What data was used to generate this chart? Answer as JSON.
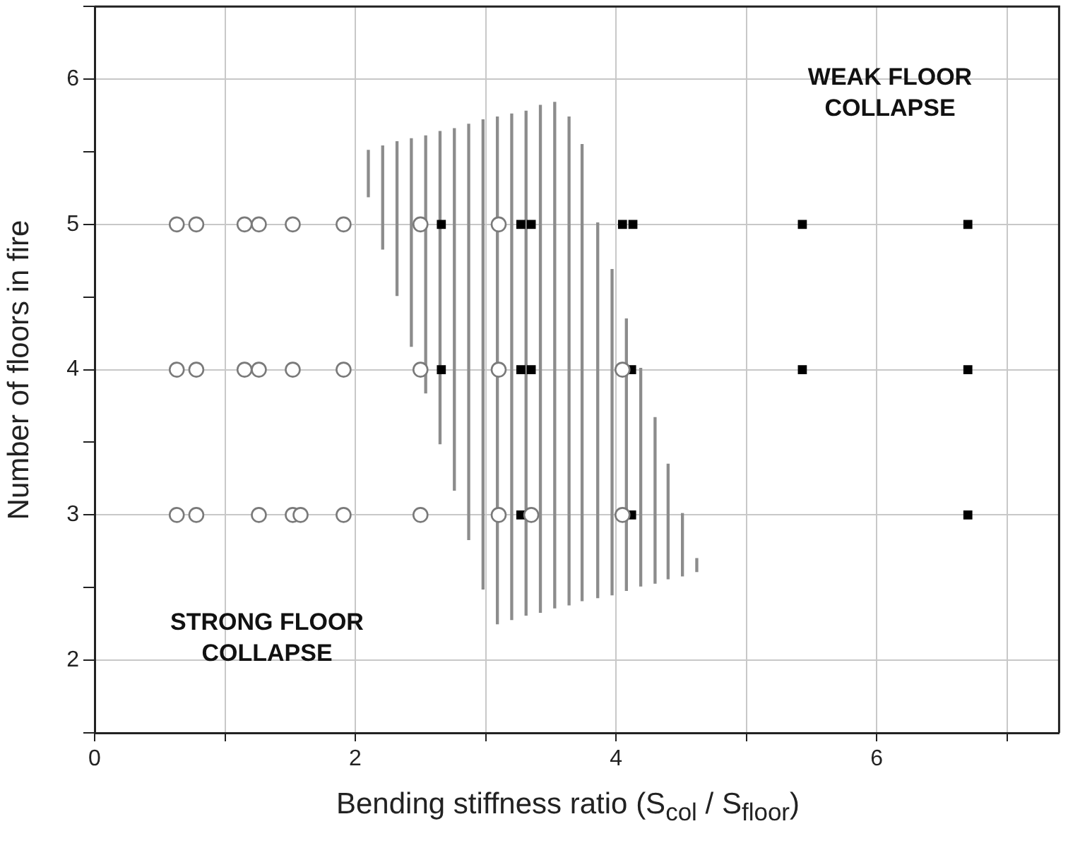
{
  "chart_data": {
    "type": "scatter",
    "xlabel": "Bending stiffness ratio (S$_{col}$ / S$_{floor}$)",
    "ylabel": "Number of floors in fire",
    "xlim": [
      0,
      7.4
    ],
    "xticks": [
      0,
      {
        "value": 1,
        "label": null
      },
      2,
      {
        "value": 3,
        "label": null
      },
      4,
      {
        "value": 5,
        "label": null
      },
      6,
      {
        "value": 7,
        "label": null
      }
    ],
    "ylim": [
      1.5,
      6.5
    ],
    "yticks": [
      {
        "value": 1.5,
        "label": null
      },
      2,
      {
        "value": 2.5,
        "label": null
      },
      3,
      {
        "value": 3.5,
        "label": null
      },
      4,
      {
        "value": 4.5,
        "label": null
      },
      5,
      {
        "value": 5.5,
        "label": null
      },
      6,
      {
        "value": 6.5,
        "label": null
      }
    ],
    "grid": true,
    "legend": false,
    "annotations": [
      "WEAK FLOOR COLLAPSE",
      "STRONG FLOOR COLLAPSE"
    ],
    "series": [
      {
        "type": "bar",
        "color": "#8c8c8c",
        "x": [
          2.1,
          2.21,
          2.32,
          2.43,
          2.54,
          2.65,
          2.76,
          2.87,
          2.98,
          3.09,
          3.2,
          3.31,
          3.42,
          3.53,
          3.64,
          3.74,
          3.86,
          3.97,
          4.08,
          4.19,
          4.3,
          4.4,
          4.51,
          4.62
        ],
        "base": [
          5.19,
          4.83,
          4.51,
          4.16,
          3.84,
          3.49,
          3.17,
          2.83,
          2.49,
          2.25,
          2.28,
          2.31,
          2.33,
          2.36,
          2.38,
          2.41,
          2.43,
          2.45,
          2.48,
          2.51,
          2.53,
          2.56,
          2.58,
          2.61
        ],
        "values": [
          0.32,
          0.71,
          1.06,
          1.43,
          1.77,
          2.15,
          2.49,
          2.86,
          3.23,
          3.49,
          3.48,
          3.47,
          3.49,
          3.48,
          3.36,
          3.14,
          2.58,
          2.24,
          1.87,
          1.5,
          1.14,
          0.79,
          0.43,
          0.09
        ]
      },
      {
        "marker": "circle",
        "color": "#7a7a7a",
        "x": [
          0.63,
          0.78,
          1.15,
          1.26,
          1.52,
          1.91,
          2.5,
          3.1,
          0.63,
          0.78,
          1.15,
          1.26,
          1.52,
          1.91,
          2.5,
          3.1,
          4.05,
          0.63,
          0.78,
          1.26,
          1.52,
          1.58,
          1.91,
          2.5,
          3.1,
          3.35,
          4.05
        ],
        "values": [
          5,
          5,
          5,
          5,
          5,
          5,
          5,
          5,
          4,
          4,
          4,
          4,
          4,
          4,
          4,
          4,
          4,
          3,
          3,
          3,
          3,
          3,
          3,
          3,
          3,
          3,
          3
        ]
      },
      {
        "marker": "square",
        "color": "#000000",
        "x": [
          2.66,
          3.27,
          3.35,
          4.05,
          4.13,
          5.43,
          6.7,
          2.66,
          3.27,
          3.35,
          4.12,
          5.43,
          6.7,
          3.27,
          4.12,
          6.7
        ],
        "values": [
          5,
          5,
          5,
          5,
          5,
          5,
          5,
          4,
          4,
          4,
          4,
          4,
          4,
          3,
          3,
          3
        ]
      }
    ]
  }
}
